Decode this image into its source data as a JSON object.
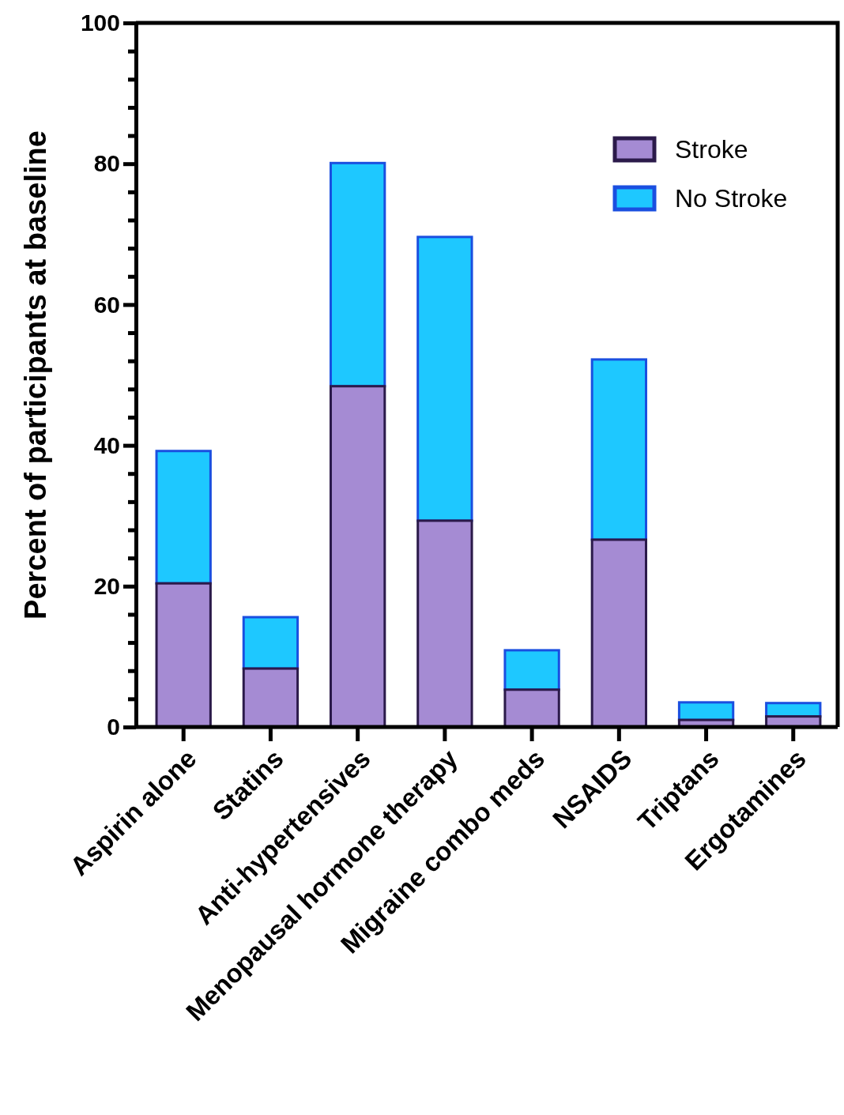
{
  "chart_data": {
    "type": "bar",
    "stacked": true,
    "ylabel": "Percent of participants at baseline",
    "categories": [
      "Aspirin alone",
      "Statins",
      "Anti-hypertensives",
      "Menopausal hormone therapy",
      "Migraine combo meds",
      "NSAIDS",
      "Triptans",
      "Ergotamines"
    ],
    "series": [
      {
        "name": "Stroke",
        "color": "#a58bd3",
        "values": [
          20.4,
          8.3,
          48.4,
          29.3,
          5.3,
          26.6,
          1.0,
          1.5
        ]
      },
      {
        "name": "No Stroke",
        "color": "#1ec8ff",
        "values": [
          18.8,
          7.3,
          31.7,
          40.3,
          5.6,
          25.6,
          2.5,
          1.9
        ]
      }
    ],
    "ylim": [
      0,
      100
    ],
    "yticks": [
      0,
      {
        "value": 4,
        "label": null
      },
      {
        "value": 8,
        "label": null
      },
      {
        "value": 12,
        "label": null
      },
      {
        "value": 16,
        "label": null
      },
      20,
      {
        "value": 24,
        "label": null
      },
      {
        "value": 28,
        "label": null
      },
      {
        "value": 32,
        "label": null
      },
      {
        "value": 36,
        "label": null
      },
      40,
      {
        "value": 44,
        "label": null
      },
      {
        "value": 48,
        "label": null
      },
      {
        "value": 52,
        "label": null
      },
      {
        "value": 56,
        "label": null
      },
      60,
      {
        "value": 64,
        "label": null
      },
      {
        "value": 68,
        "label": null
      },
      {
        "value": 72,
        "label": null
      },
      {
        "value": 76,
        "label": null
      },
      80,
      {
        "value": 84,
        "label": null
      },
      {
        "value": 88,
        "label": null
      },
      {
        "value": 92,
        "label": null
      },
      {
        "value": 96,
        "label": null
      },
      100
    ],
    "grid": false,
    "legend": "top right"
  }
}
